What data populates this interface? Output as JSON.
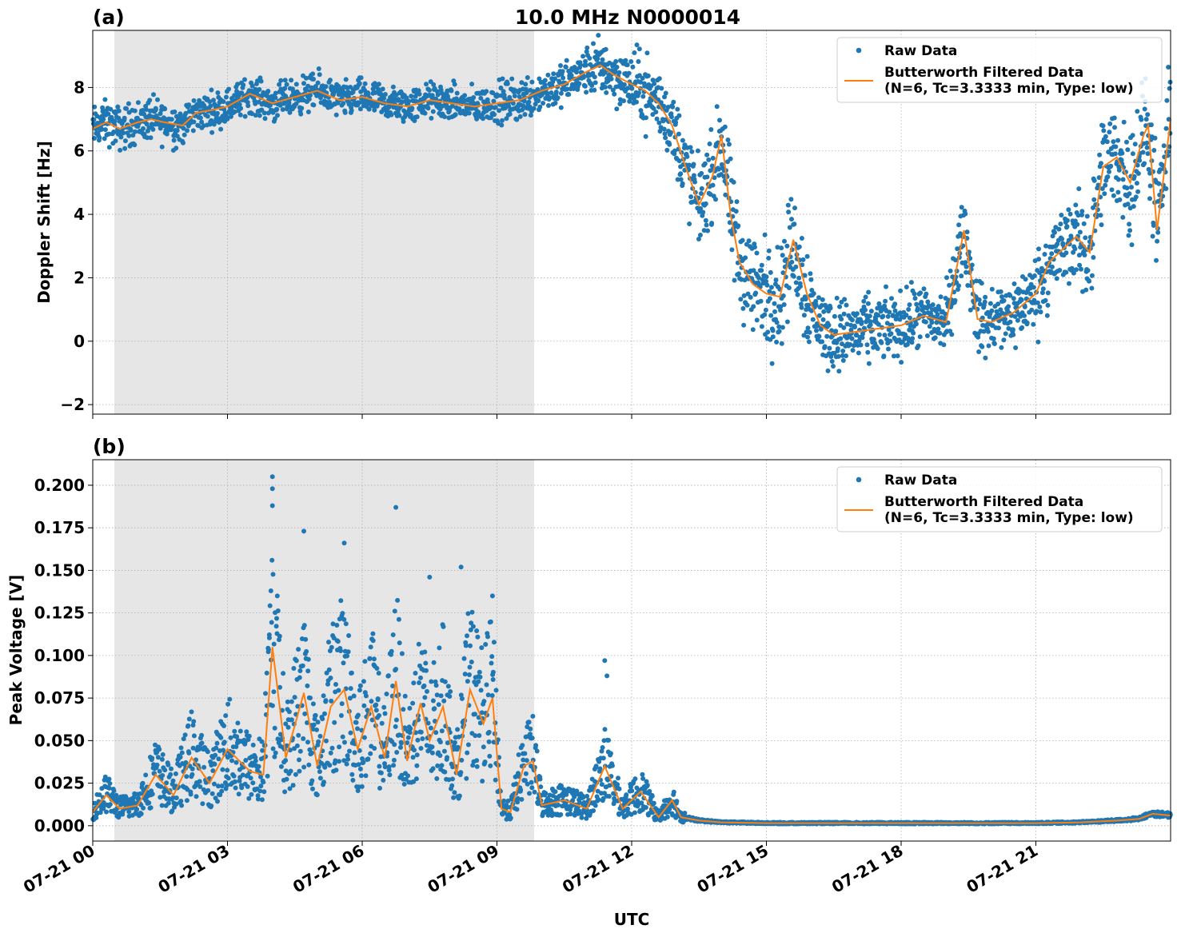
{
  "title": "10.0 MHz N0000014",
  "colors": {
    "raw": "#1f77b4",
    "filtered": "#ff7f0e",
    "shade": "#e6e6e6",
    "grid": "#b0b0b0"
  },
  "x_label": "UTC",
  "x_ticks": [
    "07-21 00",
    "07-21 03",
    "07-21 06",
    "07-21 09",
    "07-21 12",
    "07-21 15",
    "07-21 18",
    "07-21 21"
  ],
  "chart_data": [
    {
      "type": "scatter",
      "panel_label": "(a)",
      "title": "10.0 MHz N0000014",
      "xlabel": "",
      "ylabel": "Doppler Shift [Hz]",
      "xlim": [
        "2019-07-21 00:00",
        "2019-07-21 24:00"
      ],
      "ylim": [
        -2.3,
        9.8
      ],
      "yticks": [
        "−2",
        "0",
        "2",
        "4",
        "6",
        "8"
      ],
      "grid": true,
      "legend_position": "top-right",
      "shaded_interval": [
        "07-21 00:27",
        "07-21 09:48"
      ],
      "series": [
        {
          "name": "Raw Data",
          "kind": "scatter",
          "spread": [
            0.6,
            0.6,
            0.5,
            0.5,
            0.5,
            0.5,
            0.5,
            0.5,
            0.5,
            0.6,
            0.6,
            0.8,
            1.0,
            1.2,
            1.5,
            1.5,
            1.0,
            0.9,
            0.9,
            1.0,
            1.0,
            1.2,
            1.5,
            1.6,
            1.2
          ]
        },
        {
          "name": "Butterworth Filtered Data\n(N=6, Tc=3.3333 min, Type: low)",
          "kind": "line",
          "x_hours": [
            0,
            0.3,
            0.6,
            1.0,
            1.3,
            1.6,
            2.0,
            2.3,
            2.7,
            3.0,
            3.5,
            4.0,
            4.5,
            5.0,
            5.5,
            6.0,
            6.5,
            7.0,
            7.5,
            8.0,
            8.5,
            9.0,
            9.5,
            10.0,
            10.5,
            11.0,
            11.3,
            11.6,
            12.0,
            12.3,
            12.6,
            12.9,
            13.2,
            13.5,
            13.8,
            14.0,
            14.2,
            14.4,
            14.7,
            15.0,
            15.3,
            15.6,
            15.9,
            16.2,
            16.5,
            17.0,
            17.5,
            18.0,
            18.5,
            19.0,
            19.4,
            19.7,
            20.0,
            20.5,
            21.0,
            21.3,
            21.6,
            21.9,
            22.2,
            22.5,
            22.8,
            23.1,
            23.4,
            23.5,
            23.7,
            24.0
          ],
          "y": [
            6.7,
            6.9,
            6.7,
            6.9,
            7.0,
            6.9,
            6.8,
            7.2,
            7.3,
            7.4,
            7.8,
            7.5,
            7.7,
            7.9,
            7.6,
            7.7,
            7.5,
            7.4,
            7.6,
            7.5,
            7.4,
            7.5,
            7.6,
            7.9,
            8.1,
            8.5,
            8.7,
            8.4,
            8.1,
            7.9,
            7.5,
            6.8,
            5.5,
            4.3,
            5.2,
            6.5,
            4.0,
            2.5,
            1.8,
            1.5,
            1.4,
            3.2,
            1.5,
            0.5,
            0.2,
            0.3,
            0.4,
            0.5,
            0.8,
            0.6,
            3.5,
            0.7,
            0.6,
            0.9,
            1.5,
            2.5,
            2.9,
            3.3,
            2.8,
            5.5,
            5.8,
            5.0,
            6.5,
            6.8,
            3.5,
            7.0
          ]
        }
      ]
    },
    {
      "type": "scatter",
      "panel_label": "(b)",
      "title": "",
      "xlabel": "UTC",
      "ylabel": "Peak Voltage [V]",
      "xlim": [
        "2019-07-21 00:00",
        "2019-07-21 24:00"
      ],
      "ylim": [
        -0.009,
        0.215
      ],
      "yticks": [
        "0.000",
        "0.025",
        "0.050",
        "0.075",
        "0.100",
        "0.125",
        "0.150",
        "0.175",
        "0.200"
      ],
      "grid": true,
      "legend_position": "top-right",
      "shaded_interval": [
        "07-21 00:27",
        "07-21 09:48"
      ],
      "series": [
        {
          "name": "Raw Data",
          "kind": "scatter",
          "outliers": [
            [
              4.0,
              0.205
            ],
            [
              4.0,
              0.198
            ],
            [
              4.0,
              0.188
            ],
            [
              4.7,
              0.173
            ],
            [
              5.6,
              0.166
            ],
            [
              6.75,
              0.187
            ],
            [
              7.5,
              0.146
            ],
            [
              8.2,
              0.152
            ],
            [
              8.9,
              0.135
            ],
            [
              11.4,
              0.097
            ],
            [
              11.45,
              0.088
            ]
          ]
        },
        {
          "name": "Butterworth Filtered Data\n(N=6, Tc=3.3333 min, Type: low)",
          "kind": "line",
          "x_hours": [
            0,
            0.3,
            0.6,
            1.0,
            1.4,
            1.8,
            2.2,
            2.6,
            3.0,
            3.5,
            3.8,
            4.0,
            4.3,
            4.7,
            5.0,
            5.3,
            5.6,
            5.9,
            6.2,
            6.5,
            6.75,
            7.0,
            7.3,
            7.5,
            7.8,
            8.1,
            8.4,
            8.7,
            8.9,
            9.1,
            9.3,
            9.6,
            9.8,
            10.0,
            10.5,
            11.0,
            11.4,
            11.8,
            12.2,
            12.6,
            12.9,
            13.1,
            13.5,
            14.0,
            15.0,
            17.0,
            19.0,
            21.0,
            22.0,
            22.8,
            23.3,
            23.6,
            24.0
          ],
          "y": [
            0.008,
            0.018,
            0.01,
            0.012,
            0.03,
            0.018,
            0.04,
            0.025,
            0.045,
            0.032,
            0.03,
            0.105,
            0.04,
            0.078,
            0.035,
            0.07,
            0.08,
            0.045,
            0.07,
            0.04,
            0.085,
            0.038,
            0.072,
            0.05,
            0.07,
            0.03,
            0.08,
            0.06,
            0.075,
            0.01,
            0.008,
            0.035,
            0.038,
            0.012,
            0.015,
            0.01,
            0.035,
            0.01,
            0.02,
            0.005,
            0.015,
            0.005,
            0.003,
            0.002,
            0.0015,
            0.0015,
            0.0015,
            0.0015,
            0.002,
            0.003,
            0.004,
            0.007,
            0.006
          ]
        }
      ]
    }
  ]
}
